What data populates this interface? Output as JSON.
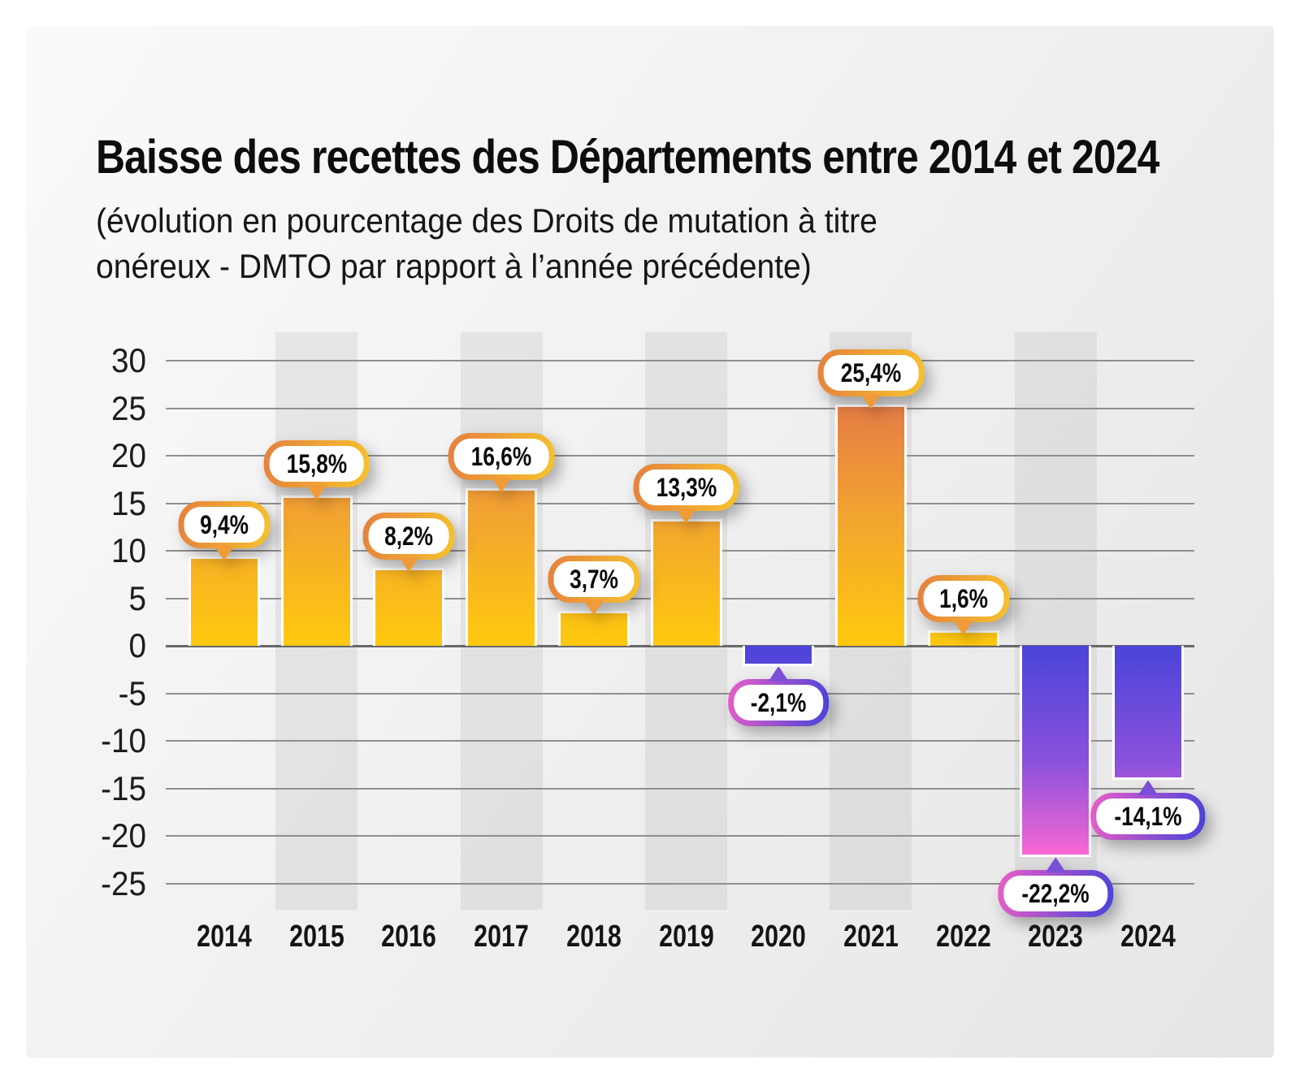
{
  "title": "Baisse des recettes des Départements entre 2014 et 2024",
  "subtitle": "(évolution en pourcentage des Droits de mutation à titre\nonéreux - DMTO par rapport à l’année précédente)",
  "chart_data": {
    "type": "bar",
    "categories": [
      "2014",
      "2015",
      "2016",
      "2017",
      "2018",
      "2019",
      "2020",
      "2021",
      "2022",
      "2023",
      "2024"
    ],
    "values": [
      9.4,
      15.8,
      8.2,
      16.6,
      3.7,
      13.3,
      -2.1,
      25.4,
      1.6,
      -22.2,
      -14.1
    ],
    "value_labels": [
      "9,4%",
      "15,8%",
      "8,2%",
      "16,6%",
      "3,7%",
      "13,3%",
      "-2,1%",
      "25,4%",
      "1,6%",
      "-22,2%",
      "-14,1%"
    ],
    "yticks": [
      30,
      25,
      20,
      15,
      10,
      5,
      0,
      -5,
      -10,
      -15,
      -20,
      -25
    ],
    "ylim": [
      -27,
      32
    ],
    "grid": true,
    "legend": "none",
    "striped_categories": [
      "2015",
      "2017",
      "2019",
      "2021",
      "2023"
    ],
    "title": "Baisse des recettes des Départements entre 2014 et 2024",
    "xlabel": "",
    "ylabel": ""
  },
  "style": {
    "positive_bar_gradient": [
      "#e57c45",
      "#f2a331",
      "#ffc90e"
    ],
    "negative_bar_gradient": [
      "#4a44d8",
      "#8a51dc",
      "#fa68d3"
    ],
    "positive_bubble_border": [
      "#e5803f",
      "#f6c32c"
    ],
    "negative_bubble_border": [
      "#ea5ec6",
      "#4743d9"
    ],
    "positive_tail": "#f09b37",
    "negative_tail": "#7b4ed7",
    "gridline_color": "#8f8f8f",
    "zero_line_color": "#686868",
    "stripe_color": "rgba(0,0,0,0.058)",
    "text_color": "#111111",
    "bubble_fill": "#ffffff"
  }
}
